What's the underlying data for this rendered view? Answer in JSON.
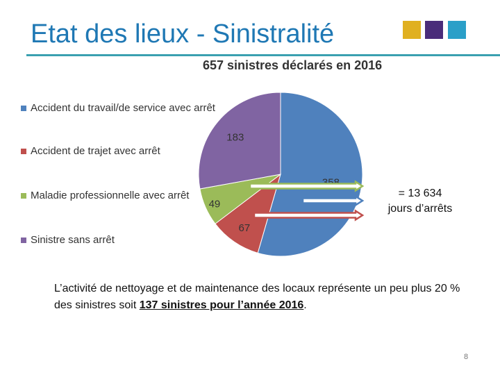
{
  "slide": {
    "title": "Etat des lieux - Sinistralité",
    "page_number": "8",
    "decor_colors": [
      "#e0b020",
      "#4a2c7a",
      "#2a9fc8"
    ]
  },
  "result": {
    "line1": "= 13 634",
    "line2": "jours d’arrêts"
  },
  "note": {
    "text_before": "L’activité de nettoyage et de maintenance des locaux représente un peu plus 20 % des sinistres soit ",
    "emphasis": "137 sinistres pour l’année 2016",
    "text_after": "."
  },
  "chart_data": {
    "type": "pie",
    "title": "657 sinistres déclarés en 2016",
    "legend_position": "left",
    "start": "top, clockwise",
    "slices": [
      {
        "label": "Accident du travail/de service avec arrêt",
        "value": 358,
        "color": "#4f81bd"
      },
      {
        "label": "Accident de trajet avec arrêt",
        "value": 67,
        "color": "#c0504d"
      },
      {
        "label": "Maladie professionnelle avec arrêt",
        "value": 49,
        "color": "#9bbb59"
      },
      {
        "label": "Sinistre sans arrêt",
        "value": 183,
        "color": "#8064a2"
      }
    ],
    "callout_arrows": [
      {
        "series": "Maladie professionnelle avec arrêt",
        "color": "#9bbb59"
      },
      {
        "series": "Accident du travail/de service avec arrêt",
        "color": "#4f81bd"
      },
      {
        "series": "Accident de trajet avec arrêt",
        "color": "#c0504d"
      }
    ]
  }
}
